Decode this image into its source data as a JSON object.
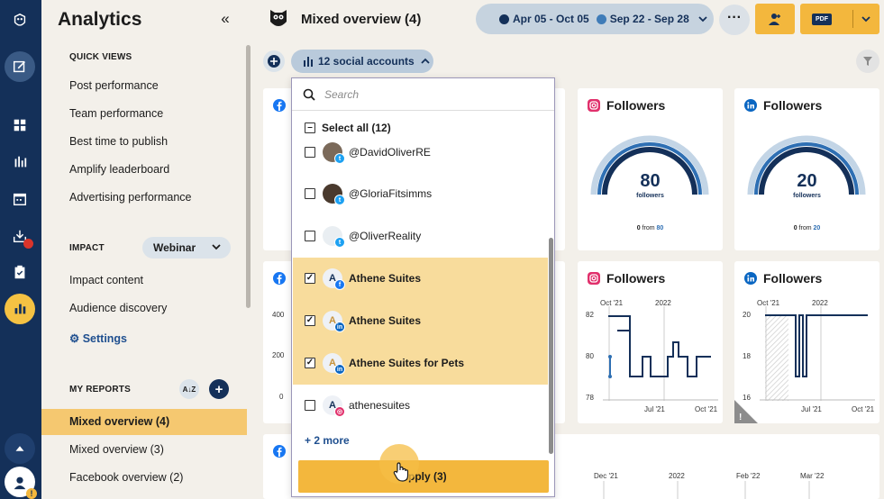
{
  "sidebar": {
    "title": "Analytics",
    "collapse_icon": "«",
    "quick_views_heading": "QUICK VIEWS",
    "quick_views": [
      "Post performance",
      "Team performance",
      "Best time to publish",
      "Amplify leaderboard",
      "Advertising performance"
    ],
    "impact_heading": "IMPACT",
    "webinar_label": "Webinar",
    "impact_items": [
      "Impact content",
      "Audience discovery"
    ],
    "settings_label": "Settings",
    "my_reports_heading": "MY REPORTS",
    "sort_icon_label": "A↓Z",
    "reports": [
      "Mixed overview (4)",
      "Mixed overview (3)",
      "Facebook overview (2)"
    ]
  },
  "header": {
    "title": "Mixed overview (4)",
    "date_range_1": "Apr 05 - Oct 05",
    "date_range_2": "Sep 22 - Sep 28",
    "more_label": "···",
    "pdf_label": "PDF"
  },
  "colors": {
    "range1": "#143059",
    "range2": "#3f7cb8",
    "accent": "#f3b73d",
    "sidebar": "#143059"
  },
  "accounts_filter": {
    "label": "12 social accounts"
  },
  "dropdown": {
    "search_placeholder": "Search",
    "select_all": "Select all (12)",
    "accounts": [
      {
        "name": "@DavidOliverRE",
        "checked": false,
        "network": "twitter"
      },
      {
        "name": "@GloriaFitsimms",
        "checked": false,
        "network": "twitter"
      },
      {
        "name": "@OliverReality",
        "checked": false,
        "network": "twitter"
      },
      {
        "name": "Athene Suites",
        "checked": true,
        "network": "facebook"
      },
      {
        "name": "Athene Suites",
        "checked": true,
        "network": "linkedin"
      },
      {
        "name": "Athene Suites for Pets",
        "checked": true,
        "network": "linkedin"
      },
      {
        "name": "athenesuites",
        "checked": false,
        "network": "instagram"
      }
    ],
    "more_label": "+ 2 more",
    "apply_label": "Apply (3)"
  },
  "cards": {
    "ig_gauge": {
      "title": "Followers",
      "value": "80",
      "unit": "followers",
      "from_prefix": "0",
      "from_word": "from",
      "from_value": "80"
    },
    "li_gauge": {
      "title": "Followers",
      "value": "20",
      "unit": "followers",
      "from_prefix": "0",
      "from_word": "from",
      "from_value": "20"
    },
    "fb_line": {
      "yticks": [
        "400",
        "200",
        "0"
      ]
    },
    "ig_line": {
      "title": "Followers",
      "top_labels": [
        "Oct '21",
        "2022"
      ],
      "yticks": [
        "82",
        "80",
        "78"
      ],
      "xticks": [
        "Jul '21",
        "Oct '21"
      ]
    },
    "li_line": {
      "title": "Followers",
      "top_labels": [
        "Oct '21",
        "2022"
      ],
      "yticks": [
        "20",
        "18",
        "16"
      ],
      "xticks": [
        "Jul '21",
        "Oct '21"
      ]
    },
    "bottom": {
      "xticks": [
        "Dec '21",
        "2022",
        "Feb '22",
        "Mar '22"
      ]
    }
  }
}
